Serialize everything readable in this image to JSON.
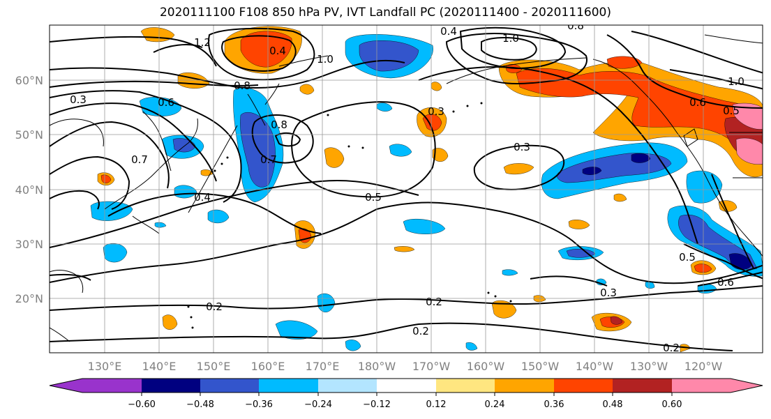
{
  "title": "2020111100 F108 850 hPa PV, IVT Landfall PC (2020111400 - 2020111600)",
  "chart_data": {
    "type": "map",
    "title": "2020111100 F108 850 hPa PV, IVT Landfall PC (2020111400 - 2020111600)",
    "lon_ticks": [
      "130°E",
      "140°E",
      "150°E",
      "160°E",
      "170°E",
      "180°W",
      "170°W",
      "160°W",
      "150°W",
      "140°W",
      "130°W",
      "120°W"
    ],
    "lat_ticks": [
      "60°N",
      "50°N",
      "40°N",
      "30°N",
      "20°N"
    ],
    "lon_range_east": [
      120,
      251
    ],
    "lat_range": [
      10,
      70
    ],
    "grid": true,
    "colorbar": {
      "ticks": [
        "−0.60",
        "−0.48",
        "−0.36",
        "−0.24",
        "−0.12",
        "0.12",
        "0.24",
        "0.36",
        "0.48",
        "0.60"
      ],
      "colors": [
        "#9933cc",
        "#000080",
        "#3355cc",
        "#00bbff",
        "#b3e5ff",
        "#ffffff",
        "#ffe680",
        "#ffa500",
        "#ff4400",
        "#b22222",
        "#ff88aa"
      ],
      "extend": "both"
    },
    "contour_labels": [
      {
        "text": "1.0",
        "lon": 195,
        "lat": 58
      },
      {
        "text": "1.0",
        "lon": 163,
        "lat": 63
      },
      {
        "text": "1.0",
        "lon": 247,
        "lat": 59
      },
      {
        "text": "0.8",
        "lon": 157,
        "lat": 59
      },
      {
        "text": "0.8",
        "lon": 222,
        "lat": 69
      },
      {
        "text": "0.8",
        "lon": 163,
        "lat": 51.5
      },
      {
        "text": "0.7",
        "lon": 160,
        "lat": 45
      },
      {
        "text": "0.7",
        "lon": 136,
        "lat": 45
      },
      {
        "text": "0.6",
        "lon": 140,
        "lat": 55
      },
      {
        "text": "0.6",
        "lon": 243,
        "lat": 55
      },
      {
        "text": "0.5",
        "lon": 246,
        "lat": 53
      },
      {
        "text": "0.5",
        "lon": 178,
        "lat": 38
      },
      {
        "text": "0.5",
        "lon": 233,
        "lat": 30
      },
      {
        "text": "0.4",
        "lon": 148,
        "lat": 38
      },
      {
        "text": "0.4",
        "lon": 190,
        "lat": 69
      },
      {
        "text": "0.4",
        "lon": 163,
        "lat": 64
      },
      {
        "text": "0.3",
        "lon": 205,
        "lat": 47
      },
      {
        "text": "0.3",
        "lon": 190,
        "lat": 52
      },
      {
        "text": "0.3",
        "lon": 225,
        "lat": 21
      },
      {
        "text": "0.3",
        "lon": 125,
        "lat": 55
      },
      {
        "text": "0.2",
        "lon": 150,
        "lat": 19
      },
      {
        "text": "0.2",
        "lon": 189,
        "lat": 19.5
      },
      {
        "text": "0.2",
        "lon": 187,
        "lat": 14.5
      },
      {
        "text": "0.2",
        "lon": 232,
        "lat": 11
      },
      {
        "text": "0.6",
        "lon": 240,
        "lat": 23
      },
      {
        "text": "1.2",
        "lon": 148,
        "lat": 67
      }
    ]
  }
}
